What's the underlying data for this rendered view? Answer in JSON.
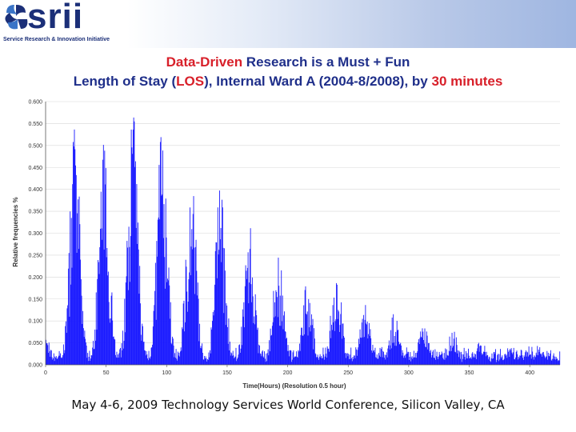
{
  "logo": {
    "word": "srii",
    "tagline": "Service Research & Innovation Initiative",
    "icon": "srii-pinwheel-icon"
  },
  "title": {
    "line1": {
      "highlight": "Data-Driven",
      "rest": " Research is a Must + Fun"
    },
    "line2": {
      "part1": "Length of Stay (",
      "highlight1": "LOS",
      "part2": "), Internal Ward A (2004-8/2008), by ",
      "highlight2": "30 minutes"
    }
  },
  "footer": "May 4-6, 2009 Technology Services World Conference,  Silicon Valley, CA",
  "colors": {
    "title": "#1f2f8a",
    "highlight": "#d8202a",
    "bars": "#1a1aff",
    "logo": "#1b2f78"
  },
  "chart_data": {
    "type": "bar",
    "xlabel": "Time(Hours) (Resolution 0.5 hour)",
    "ylabel": "Relative frequencies %",
    "xlim": [
      0,
      425
    ],
    "ylim": [
      0,
      0.6
    ],
    "x_ticks": [
      "0",
      "50",
      "100",
      "150",
      "200",
      "250",
      "300",
      "350",
      "400"
    ],
    "y_ticks": [
      "0.000",
      "0.050",
      "0.100",
      "0.150",
      "0.200",
      "0.250",
      "0.300",
      "0.350",
      "0.400",
      "0.450",
      "0.500",
      "0.550",
      "0.600"
    ],
    "bar_width": 0.5,
    "peaks": [
      {
        "x": 0,
        "value": 0.06
      },
      {
        "x": 24,
        "value": 0.54
      },
      {
        "x": 48,
        "value": 0.52
      },
      {
        "x": 72,
        "value": 0.57
      },
      {
        "x": 96,
        "value": 0.54
      },
      {
        "x": 120,
        "value": 0.44
      },
      {
        "x": 144,
        "value": 0.4
      },
      {
        "x": 168,
        "value": 0.32
      },
      {
        "x": 192,
        "value": 0.26
      },
      {
        "x": 216,
        "value": 0.19
      },
      {
        "x": 240,
        "value": 0.22
      },
      {
        "x": 264,
        "value": 0.14
      },
      {
        "x": 288,
        "value": 0.12
      },
      {
        "x": 312,
        "value": 0.09
      },
      {
        "x": 336,
        "value": 0.08
      },
      {
        "x": 360,
        "value": 0.06
      },
      {
        "x": 384,
        "value": 0.04
      },
      {
        "x": 408,
        "value": 0.04
      }
    ],
    "baseline_value": 0.03,
    "peak_width_hours": 9,
    "series_length_hours": 425
  }
}
